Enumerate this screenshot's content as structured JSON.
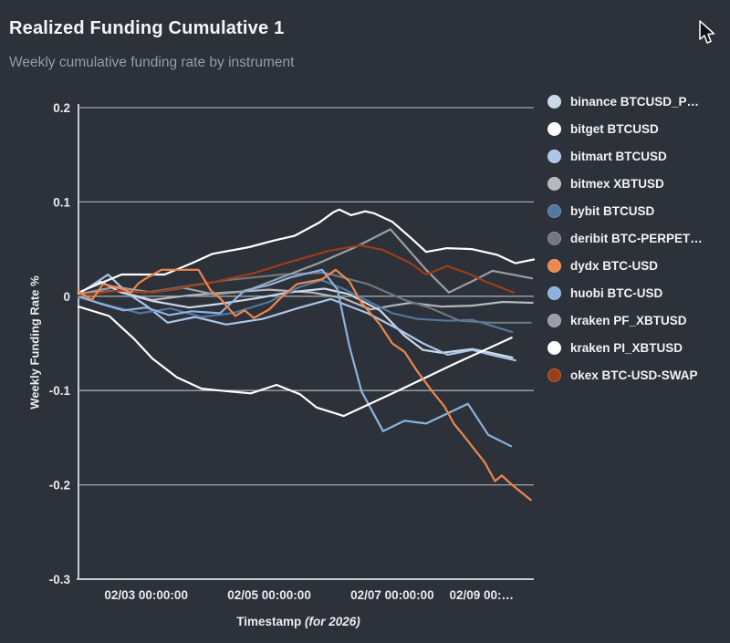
{
  "header": {
    "title": "Realized Funding Cumulative 1",
    "subtitle": "Weekly cumulative funding rate by instrument"
  },
  "colors": {
    "background": "#2c313a",
    "axis": "#c6c9ce",
    "grid": "#b8bcc2",
    "tick_text": "#e9ebee",
    "title_text": "#f4f5f7",
    "subtitle_text": "#959da6"
  },
  "chart_data": {
    "type": "line",
    "title": "Realized Funding Cumulative 1",
    "subtitle": "Weekly cumulative funding rate by instrument",
    "xlabel": "Timestamp",
    "xlabel_note": "(for 2026)",
    "ylabel": "Weekly Funding Rate %",
    "ylim": [
      -0.3,
      0.2
    ],
    "xlim_days_from_0202": [
      -0.1,
      7.3
    ],
    "grid": "horizontal",
    "legend_position": "right",
    "yticks": [
      "0.2",
      "0.1",
      "0",
      "-0.1",
      "-0.2",
      "-0.3"
    ],
    "ytick_values": [
      0.2,
      0.1,
      0,
      -0.1,
      -0.2,
      -0.3
    ],
    "xticks": [
      {
        "t": 1,
        "label": "02/03 00:00:00"
      },
      {
        "t": 3,
        "label": "02/05 00:00:00"
      },
      {
        "t": 5,
        "label": "02/07 00:00:00"
      },
      {
        "t": 7,
        "label": "02/09 00:…"
      }
    ],
    "x_unit": "days since 02/02 00:00:00",
    "y_unit": "percent",
    "series": [
      {
        "name": "binance BTCUSD_P…",
        "color": "#ccd9e8",
        "points": [
          [
            -0.1,
            0.003
          ],
          [
            0.25,
            0.016
          ],
          [
            0.6,
            0.004
          ],
          [
            1.1,
            -0.005
          ],
          [
            1.7,
            -0.012
          ],
          [
            2.2,
            -0.008
          ],
          [
            2.8,
            -0.002
          ],
          [
            3.3,
            0.004
          ],
          [
            3.9,
            0.008
          ],
          [
            4.3,
            0.002
          ],
          [
            4.8,
            -0.015
          ],
          [
            5.2,
            -0.042
          ],
          [
            5.5,
            -0.057
          ],
          [
            5.8,
            -0.06
          ],
          [
            6.3,
            -0.056
          ],
          [
            6.6,
            -0.06
          ],
          [
            6.95,
            -0.065
          ]
        ]
      },
      {
        "name": "bitget BTCUSD",
        "color": "#ffffff",
        "points": [
          [
            -0.1,
            0.004
          ],
          [
            0.08,
            0.009
          ],
          [
            0.6,
            0.023
          ],
          [
            1.3,
            0.023
          ],
          [
            1.74,
            0.035
          ],
          [
            2.08,
            0.045
          ],
          [
            2.67,
            0.052
          ],
          [
            3.07,
            0.059
          ],
          [
            3.41,
            0.064
          ],
          [
            3.81,
            0.078
          ],
          [
            4.04,
            0.089
          ],
          [
            4.14,
            0.092
          ],
          [
            4.33,
            0.086
          ],
          [
            4.56,
            0.09
          ],
          [
            4.7,
            0.088
          ],
          [
            5.0,
            0.079
          ],
          [
            5.3,
            0.062
          ],
          [
            5.55,
            0.047
          ],
          [
            5.89,
            0.051
          ],
          [
            6.29,
            0.05
          ],
          [
            6.7,
            0.044
          ],
          [
            7.0,
            0.035
          ],
          [
            7.3,
            0.039
          ]
        ]
      },
      {
        "name": "bitmart BTCUSD",
        "color": "#a9c7e8",
        "points": [
          [
            -0.1,
            0.002
          ],
          [
            0.38,
            0.023
          ],
          [
            0.7,
            0.003
          ],
          [
            1.0,
            -0.01
          ],
          [
            1.35,
            -0.028
          ],
          [
            1.8,
            -0.022
          ],
          [
            2.3,
            -0.03
          ],
          [
            2.9,
            -0.024
          ],
          [
            3.5,
            -0.012
          ],
          [
            4.0,
            -0.003
          ],
          [
            4.6,
            -0.018
          ],
          [
            5.1,
            -0.035
          ],
          [
            5.5,
            -0.05
          ],
          [
            5.9,
            -0.062
          ],
          [
            6.3,
            -0.057
          ],
          [
            6.6,
            -0.062
          ],
          [
            7.0,
            -0.068
          ]
        ]
      },
      {
        "name": "bitmex XBTUSD",
        "color": "#b5b8bd",
        "points": [
          [
            -0.1,
            0.002
          ],
          [
            0.5,
            0.006
          ],
          [
            1.1,
            -0.004
          ],
          [
            1.7,
            0.001
          ],
          [
            2.3,
            0.004
          ],
          [
            3.0,
            0.007
          ],
          [
            3.7,
            0.004
          ],
          [
            4.2,
            -0.002
          ],
          [
            4.65,
            -0.014
          ],
          [
            5.0,
            -0.01
          ],
          [
            5.3,
            -0.007
          ],
          [
            5.8,
            -0.011
          ],
          [
            6.3,
            -0.01
          ],
          [
            6.8,
            -0.006
          ],
          [
            7.28,
            -0.007
          ]
        ]
      },
      {
        "name": "bybit BTCUSD",
        "color": "#53779f",
        "points": [
          [
            -0.1,
            -0.001
          ],
          [
            0.4,
            -0.01
          ],
          [
            0.9,
            -0.018
          ],
          [
            1.4,
            -0.013
          ],
          [
            1.9,
            -0.022
          ],
          [
            2.4,
            -0.018
          ],
          [
            3.0,
            -0.006
          ],
          [
            3.5,
            0.01
          ],
          [
            3.85,
            0.017
          ],
          [
            4.2,
            0.008
          ],
          [
            4.6,
            -0.005
          ],
          [
            5.0,
            -0.018
          ],
          [
            5.4,
            -0.024
          ],
          [
            5.9,
            -0.026
          ],
          [
            6.3,
            -0.025
          ],
          [
            6.7,
            -0.033
          ],
          [
            6.95,
            -0.038
          ]
        ]
      },
      {
        "name": "deribit BTC-PERPET…",
        "color": "#73777d",
        "points": [
          [
            -0.1,
            0.001
          ],
          [
            0.5,
            0.006
          ],
          [
            1.0,
            0.004
          ],
          [
            1.6,
            0.01
          ],
          [
            2.3,
            0.017
          ],
          [
            3.2,
            0.023
          ],
          [
            3.9,
            0.025
          ],
          [
            4.6,
            0.013
          ],
          [
            5.2,
            -0.004
          ],
          [
            5.6,
            -0.012
          ],
          [
            6.1,
            -0.026
          ],
          [
            6.6,
            -0.028
          ],
          [
            7.25,
            -0.028
          ]
        ]
      },
      {
        "name": "dydx BTC-USD",
        "color": "#f0874c",
        "points": [
          [
            -0.1,
            0.005
          ],
          [
            0.12,
            -0.004
          ],
          [
            0.3,
            0.013
          ],
          [
            0.6,
            0.008
          ],
          [
            0.75,
            0.004
          ],
          [
            0.88,
            0.014
          ],
          [
            1.05,
            0.021
          ],
          [
            1.25,
            0.028
          ],
          [
            1.85,
            0.028
          ],
          [
            2.05,
            0.006
          ],
          [
            2.2,
            -0.002
          ],
          [
            2.45,
            -0.021
          ],
          [
            2.6,
            -0.015
          ],
          [
            2.75,
            -0.023
          ],
          [
            3.0,
            -0.014
          ],
          [
            3.2,
            -0.001
          ],
          [
            3.45,
            0.013
          ],
          [
            3.86,
            0.018
          ],
          [
            4.08,
            0.028
          ],
          [
            4.3,
            0.016
          ],
          [
            4.5,
            -0.007
          ],
          [
            4.8,
            -0.03
          ],
          [
            5.0,
            -0.05
          ],
          [
            5.2,
            -0.059
          ],
          [
            5.4,
            -0.079
          ],
          [
            5.65,
            -0.101
          ],
          [
            5.85,
            -0.117
          ],
          [
            6.0,
            -0.135
          ],
          [
            6.15,
            -0.147
          ],
          [
            6.5,
            -0.176
          ],
          [
            6.67,
            -0.196
          ],
          [
            6.78,
            -0.19
          ],
          [
            6.93,
            -0.199
          ],
          [
            7.25,
            -0.216
          ]
        ]
      },
      {
        "name": "huobi BTC-USD",
        "color": "#8cb3de",
        "points": [
          [
            -0.1,
            0.0
          ],
          [
            0.26,
            -0.008
          ],
          [
            0.63,
            -0.015
          ],
          [
            1.0,
            -0.012
          ],
          [
            1.37,
            -0.02
          ],
          [
            1.74,
            -0.016
          ],
          [
            2.2,
            -0.018
          ],
          [
            2.6,
            0.006
          ],
          [
            3.0,
            0.012
          ],
          [
            3.35,
            0.02
          ],
          [
            3.86,
            0.028
          ],
          [
            4.11,
            0.007
          ],
          [
            4.3,
            -0.052
          ],
          [
            4.5,
            -0.101
          ],
          [
            4.85,
            -0.143
          ],
          [
            5.2,
            -0.132
          ],
          [
            5.55,
            -0.135
          ],
          [
            6.23,
            -0.114
          ],
          [
            6.56,
            -0.147
          ],
          [
            6.93,
            -0.159
          ]
        ]
      },
      {
        "name": "kraken PF_XBTUSD",
        "color": "#9b9fa5",
        "points": [
          [
            -0.1,
            0.002
          ],
          [
            0.5,
            0.01
          ],
          [
            1.1,
            0.004
          ],
          [
            1.6,
            0.009
          ],
          [
            2.1,
            0.002
          ],
          [
            2.6,
            0.005
          ],
          [
            3.2,
            0.02
          ],
          [
            3.8,
            0.035
          ],
          [
            4.4,
            0.052
          ],
          [
            4.97,
            0.071
          ],
          [
            5.55,
            0.028
          ],
          [
            5.92,
            0.004
          ],
          [
            6.3,
            0.016
          ],
          [
            6.63,
            0.027
          ],
          [
            7.27,
            0.019
          ]
        ]
      },
      {
        "name": "kraken PI_XBTUSD",
        "color": "#ffffff",
        "points": [
          [
            -0.1,
            -0.011
          ],
          [
            0.4,
            -0.021
          ],
          [
            0.8,
            -0.045
          ],
          [
            1.1,
            -0.066
          ],
          [
            1.5,
            -0.086
          ],
          [
            1.9,
            -0.098
          ],
          [
            2.2,
            -0.1
          ],
          [
            2.7,
            -0.103
          ],
          [
            3.12,
            -0.094
          ],
          [
            3.5,
            -0.104
          ],
          [
            3.77,
            -0.118
          ],
          [
            4.21,
            -0.127
          ],
          [
            5.1,
            -0.1
          ],
          [
            6.0,
            -0.072
          ],
          [
            6.94,
            -0.044
          ]
        ]
      },
      {
        "name": "okex BTC-USD-SWAP",
        "color": "#9d3d16",
        "points": [
          [
            -0.1,
            0.001
          ],
          [
            0.55,
            0.006
          ],
          [
            1.1,
            0.004
          ],
          [
            2.04,
            0.014
          ],
          [
            2.78,
            0.025
          ],
          [
            3.27,
            0.035
          ],
          [
            3.96,
            0.048
          ],
          [
            4.48,
            0.054
          ],
          [
            4.85,
            0.049
          ],
          [
            5.3,
            0.035
          ],
          [
            5.55,
            0.023
          ],
          [
            5.89,
            0.032
          ],
          [
            6.2,
            0.025
          ],
          [
            6.5,
            0.016
          ],
          [
            6.97,
            0.004
          ]
        ]
      }
    ]
  }
}
